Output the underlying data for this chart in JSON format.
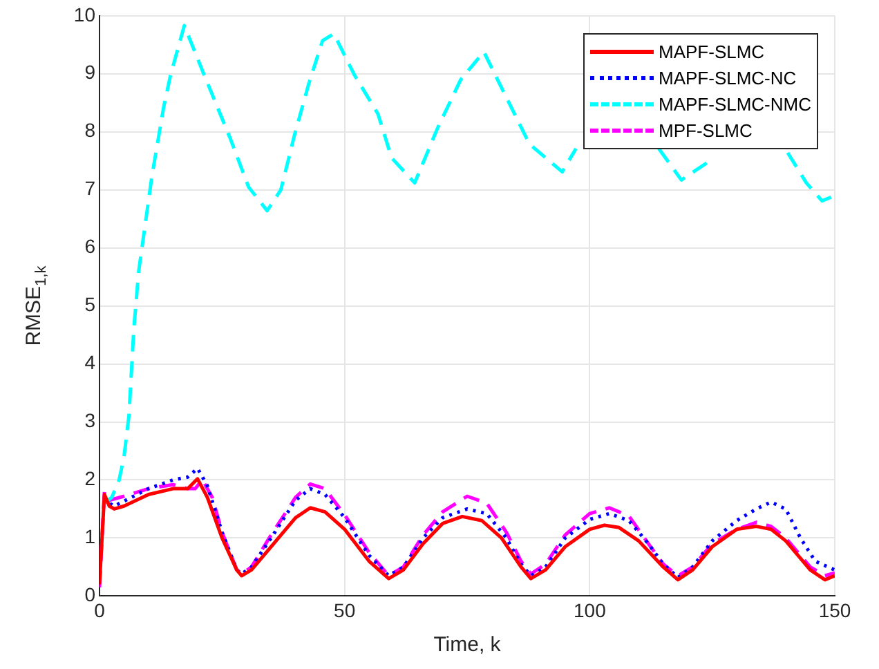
{
  "chart_data": {
    "type": "line",
    "xlabel": "Time, k",
    "ylabel": "RMSE$_{1,k}$",
    "xlim": [
      0,
      150
    ],
    "ylim": [
      0,
      10
    ],
    "xticks": [
      0,
      50,
      100,
      150
    ],
    "yticks": [
      0,
      1,
      2,
      3,
      4,
      5,
      6,
      7,
      8,
      9,
      10
    ],
    "grid": true,
    "legend": "top right",
    "marker": "none",
    "series": [
      {
        "name": "MAPF-SLMC",
        "color": "#ff0000",
        "line_style": "solid",
        "x": [
          0,
          1,
          2,
          3,
          5,
          10,
          15,
          18,
          20,
          22,
          25,
          28,
          29,
          31,
          35,
          40,
          43,
          46,
          50,
          55,
          59,
          62,
          66,
          70,
          74,
          78,
          82,
          86,
          88,
          91,
          95,
          100,
          103,
          106,
          110,
          115,
          118,
          121,
          125,
          130,
          134,
          137,
          140,
          145,
          148,
          150
        ],
        "values": [
          0.2,
          1.75,
          1.55,
          1.5,
          1.55,
          1.75,
          1.85,
          1.85,
          2.02,
          1.7,
          1.0,
          0.45,
          0.35,
          0.45,
          0.85,
          1.35,
          1.52,
          1.45,
          1.15,
          0.6,
          0.3,
          0.45,
          0.9,
          1.25,
          1.37,
          1.3,
          1.0,
          0.5,
          0.3,
          0.45,
          0.85,
          1.15,
          1.22,
          1.18,
          0.95,
          0.5,
          0.28,
          0.45,
          0.85,
          1.15,
          1.2,
          1.15,
          0.95,
          0.45,
          0.28,
          0.35
        ]
      },
      {
        "name": "MAPF-SLMC-NC",
        "color": "#0000ff",
        "line_style": "dotted",
        "x": [
          1,
          2,
          3,
          10,
          15,
          18,
          20,
          22,
          25,
          28,
          29,
          31,
          35,
          40,
          43,
          46,
          50,
          55,
          59,
          62,
          66,
          70,
          75,
          79,
          83,
          86,
          88,
          91,
          95,
          100,
          104,
          108,
          112,
          115,
          118,
          121,
          125,
          130,
          134,
          137,
          140,
          143,
          146,
          150
        ],
        "values": [
          1.7,
          1.6,
          1.55,
          1.85,
          2.0,
          2.05,
          2.2,
          1.9,
          1.1,
          0.45,
          0.38,
          0.5,
          1.0,
          1.65,
          1.85,
          1.75,
          1.35,
          0.7,
          0.35,
          0.5,
          1.0,
          1.35,
          1.5,
          1.42,
          1.0,
          0.55,
          0.35,
          0.5,
          1.0,
          1.32,
          1.42,
          1.3,
          0.9,
          0.55,
          0.32,
          0.5,
          0.95,
          1.3,
          1.5,
          1.62,
          1.5,
          1.0,
          0.6,
          0.45
        ]
      },
      {
        "name": "MAPF-SLMC-NMC",
        "color": "#00ffff",
        "line_style": "dashed",
        "x": [
          1,
          2.5,
          4,
          5,
          6,
          7,
          8,
          10.7,
          13.1,
          14.5,
          17.3,
          21.5,
          26.7,
          30.4,
          34.2,
          37,
          39.8,
          42.7,
          45.5,
          47.8,
          52,
          56.8,
          59.6,
          64.3,
          69,
          73.7,
          78.4,
          81.2,
          87.7,
          94.4,
          97.2,
          105,
          114.1,
          118.7,
          125.4,
          133,
          140.4,
          144.2,
          147.4,
          150
        ],
        "values": [
          1.6,
          1.7,
          2.0,
          2.4,
          3.1,
          4.6,
          5.6,
          7.24,
          8.43,
          8.98,
          9.83,
          8.95,
          7.88,
          7.05,
          6.64,
          7.0,
          7.95,
          8.83,
          9.57,
          9.69,
          8.98,
          8.31,
          7.55,
          7.12,
          8.07,
          8.9,
          9.38,
          8.9,
          7.79,
          7.31,
          7.71,
          null,
          7.71,
          7.17,
          7.55,
          null,
          7.64,
          7.12,
          6.81,
          6.9
        ]
      },
      {
        "name": "MPF-SLMC",
        "color": "#ff00ff",
        "line_style": "dashed",
        "x": [
          0,
          1,
          2,
          5,
          10,
          15,
          18,
          19.5,
          21,
          23,
          25,
          28,
          29,
          31,
          35,
          40,
          43,
          46,
          50,
          55,
          59,
          62,
          66,
          70,
          75,
          79,
          83,
          86,
          88,
          91,
          95,
          100,
          104,
          108,
          112,
          115,
          118,
          121,
          125,
          130,
          134,
          137,
          140,
          145,
          148,
          150
        ],
        "values": [
          0.15,
          1.8,
          1.65,
          1.72,
          1.85,
          1.92,
          1.85,
          1.85,
          2.0,
          1.7,
          1.1,
          0.45,
          0.38,
          0.5,
          1.05,
          1.7,
          1.93,
          1.85,
          1.4,
          0.75,
          0.35,
          0.5,
          1.05,
          1.45,
          1.72,
          1.6,
          1.1,
          0.6,
          0.38,
          0.55,
          1.05,
          1.42,
          1.52,
          1.38,
          0.9,
          0.55,
          0.35,
          0.5,
          0.9,
          1.15,
          1.27,
          1.2,
          1.0,
          0.5,
          0.35,
          0.4
        ]
      }
    ]
  }
}
